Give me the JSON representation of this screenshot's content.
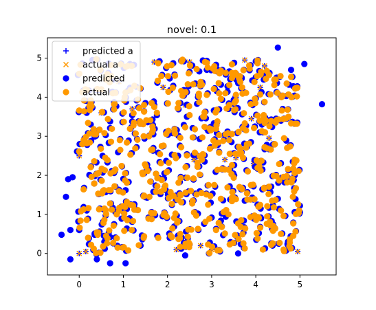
{
  "chart_data": {
    "type": "scatter",
    "title": "novel: 0.1",
    "xlabel": "",
    "ylabel": "",
    "xlim": [
      -0.72,
      5.82
    ],
    "ylim": [
      -0.55,
      5.52
    ],
    "xticks": [
      0,
      1,
      2,
      3,
      4,
      5
    ],
    "yticks": [
      0,
      1,
      2,
      3,
      4,
      5
    ],
    "grid": false,
    "legend_placement": "top-left",
    "series": [
      {
        "name": "predicted a",
        "marker": "plus",
        "color": "#0000ff",
        "points": [
          [
            0,
            2.5
          ],
          [
            0,
            0
          ],
          [
            0.15,
            0.05
          ],
          [
            0.5,
            3.6
          ],
          [
            0.9,
            4.4
          ],
          [
            1.2,
            3.7
          ],
          [
            1.7,
            4.9
          ],
          [
            1.9,
            4.25
          ],
          [
            2.2,
            0.1
          ],
          [
            2.4,
            3.8
          ],
          [
            2.5,
            4.9
          ],
          [
            2.6,
            2.4
          ],
          [
            3.3,
            2.4
          ],
          [
            3.55,
            2.45
          ],
          [
            3.75,
            4.95
          ],
          [
            3.9,
            3.45
          ],
          [
            3.95,
            2.3
          ],
          [
            4.1,
            4.25
          ],
          [
            4.3,
            2.95
          ],
          [
            4.5,
            0.25
          ],
          [
            4.95,
            0.05
          ],
          [
            3.0,
            0.1
          ],
          [
            2.75,
            0.2
          ],
          [
            4.2,
            4.8
          ]
        ]
      },
      {
        "name": "actual a",
        "marker": "x",
        "color": "#ff9900",
        "points": [
          [
            0,
            2.5
          ],
          [
            0,
            0
          ],
          [
            0.15,
            0.05
          ],
          [
            0.5,
            3.6
          ],
          [
            0.9,
            4.4
          ],
          [
            1.2,
            3.7
          ],
          [
            1.7,
            4.9
          ],
          [
            1.9,
            4.25
          ],
          [
            2.2,
            0.1
          ],
          [
            2.4,
            3.8
          ],
          [
            2.5,
            4.9
          ],
          [
            2.6,
            2.4
          ],
          [
            3.3,
            2.4
          ],
          [
            3.55,
            2.45
          ],
          [
            3.75,
            4.95
          ],
          [
            3.9,
            3.45
          ],
          [
            3.95,
            2.3
          ],
          [
            4.1,
            4.25
          ],
          [
            4.3,
            2.95
          ],
          [
            4.5,
            0.25
          ],
          [
            4.95,
            0.05
          ],
          [
            3.0,
            0.1
          ],
          [
            2.75,
            0.2
          ],
          [
            4.2,
            4.8
          ]
        ]
      },
      {
        "name": "predicted",
        "marker": "circle",
        "color": "#0000ff",
        "points": []
      },
      {
        "name": "actual",
        "marker": "circle",
        "color": "#ff9900",
        "points": []
      }
    ],
    "outliers_predicted": [
      [
        5.5,
        3.82
      ],
      [
        4.5,
        5.27
      ],
      [
        -0.4,
        0.48
      ],
      [
        -0.2,
        0.6
      ],
      [
        -0.2,
        -0.15
      ],
      [
        -0.3,
        1.45
      ],
      [
        -0.15,
        1.95
      ],
      [
        0.7,
        -0.25
      ],
      [
        1.05,
        -0.25
      ],
      [
        0.4,
        -0.15
      ],
      [
        2.4,
        -0.05
      ],
      [
        3.6,
        0.0
      ],
      [
        5.1,
        4.85
      ],
      [
        4.8,
        4.7
      ],
      [
        0.3,
        4.95
      ],
      [
        -0.25,
        1.9
      ]
    ],
    "cloud_seed": 7,
    "cloud_count": 560
  }
}
